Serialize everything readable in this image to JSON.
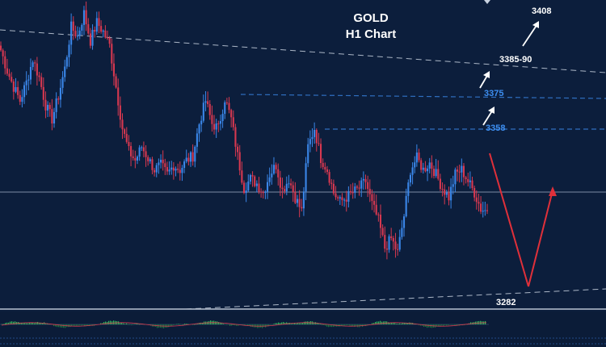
{
  "chart_data": {
    "type": "candlestick",
    "title": "GOLD",
    "subtitle": "H1 Chart",
    "colors": {
      "background": "#0c1e3c",
      "bull_candle": "#3a86e8",
      "bear_candle": "#d63850",
      "resistance_line": "#2f6fc0",
      "trend_line": "#c8d2e0",
      "projection_down": "#e0303a",
      "projection_up": "#e0303a",
      "target_arrows": "#ffffff",
      "blue_label": "#3d8ef0",
      "oscillator_up": "#35c060",
      "oscillator_down": "#1e7a40"
    },
    "price_path": [
      3392,
      3383,
      3376,
      3370,
      3378,
      3388,
      3380,
      3368,
      3362,
      3372,
      3384,
      3402,
      3398,
      3408,
      3396,
      3404,
      3400,
      3394,
      3376,
      3358,
      3348,
      3344,
      3350,
      3345,
      3340,
      3342,
      3338,
      3342,
      3340,
      3344,
      3346,
      3360,
      3370,
      3360,
      3358,
      3371,
      3362,
      3346,
      3332,
      3336,
      3334,
      3330,
      3338,
      3342,
      3331,
      3336,
      3328,
      3322,
      3350,
      3358,
      3345,
      3340,
      3330,
      3326,
      3328,
      3330,
      3332,
      3335,
      3325,
      3318,
      3306,
      3310,
      3304,
      3320,
      3340,
      3345,
      3340,
      3343,
      3338,
      3332,
      3328,
      3338,
      3340,
      3335,
      3330,
      3323,
      3322
    ],
    "levels": [
      {
        "label": "3408",
        "value": 3408,
        "style": "target"
      },
      {
        "label": "3385-90",
        "value": 3388,
        "style": "target"
      },
      {
        "label": "3375",
        "value": 3375,
        "style": "resistance"
      },
      {
        "label": "3358",
        "value": 3358,
        "style": "resistance"
      },
      {
        "label": "3282",
        "value": 3282,
        "style": "support"
      }
    ],
    "current_price": 3325,
    "projection": {
      "start": 3352,
      "low": 3282,
      "end": 3328
    },
    "indicator": "oscillator"
  }
}
